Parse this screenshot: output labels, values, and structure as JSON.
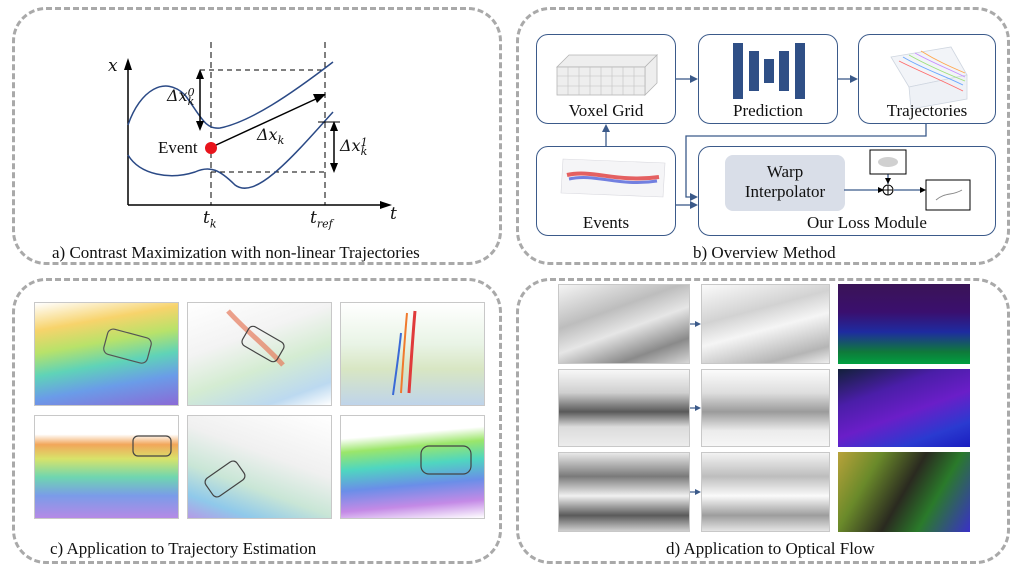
{
  "panel_a": {
    "caption": "a) Contrast Maximization with non-linear Trajectories",
    "axis_y": "x",
    "axis_x": "t",
    "event_label": "Event",
    "t_k": "t",
    "t_k_sub": "k",
    "t_ref": "t",
    "t_ref_sub": "ref",
    "dx0": "Δx",
    "dx0_sub": "k",
    "dx0_sup": "0",
    "dxk": "Δx",
    "dxk_sub": "k",
    "dx1": "Δx",
    "dx1_sub": "k",
    "dx1_sup": "1"
  },
  "panel_b": {
    "caption": "b) Overview Method",
    "voxel_label": "Voxel Grid",
    "prediction_label": "Prediction",
    "trajectories_label": "Trajectories",
    "events_label": "Events",
    "warp_label_1": "Warp",
    "warp_label_2": "Interpolator",
    "loss_label": "Our Loss Module",
    "colors": {
      "box_border": "#3b5a8a",
      "network": "#2f4f86",
      "warp_fill": "#d9dee8"
    }
  },
  "panel_c": {
    "caption": "c) Application to Trajectory Estimation"
  },
  "panel_d": {
    "caption": "d) Application to Optical Flow"
  }
}
